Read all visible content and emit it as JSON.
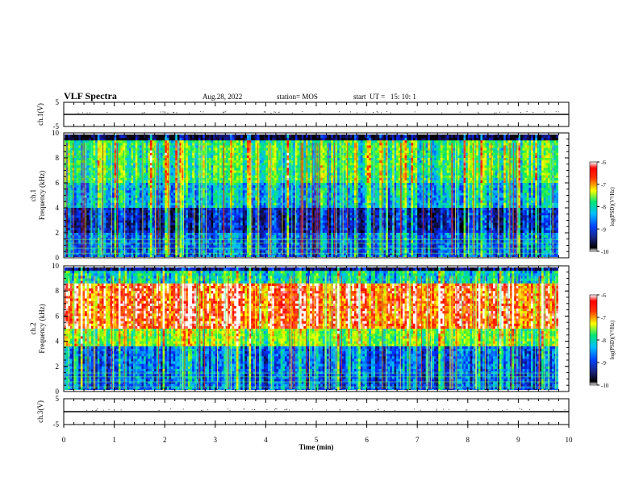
{
  "header": {
    "title": "VLF Spectra",
    "date": "Aug.28, 2022",
    "station": "station= MOS",
    "start_ut": "start  UT =   15: 10: 1"
  },
  "chart_data": [
    {
      "type": "line",
      "panel": "ch.1 waveform",
      "ylabel": "ch.1(V)",
      "ylim": [
        -5,
        5
      ],
      "yticks": [
        5,
        -5
      ],
      "x": [
        0,
        10
      ],
      "series": [
        {
          "values": [
            0,
            0
          ]
        }
      ]
    },
    {
      "type": "heatmap",
      "panel": "ch.1 spectrogram",
      "ylabel": "ch.1\nFrequency (kHz)",
      "ylabel_line1": "ch.1",
      "ylabel_line2": "Frequency (kHz)",
      "ylim": [
        0,
        10
      ],
      "yticks": [
        0,
        2,
        4,
        6,
        8,
        10
      ],
      "colorbar": {
        "label": "log(PSD)(V²/Hz)",
        "range": [
          -10,
          -6
        ],
        "ticks": [
          -6,
          -7,
          -8,
          -9,
          -10
        ]
      }
    },
    {
      "type": "heatmap",
      "panel": "ch.2 spectrogram",
      "ylabel": "ch.2\nFrequency (kHz)",
      "ylabel_line1": "ch.2",
      "ylabel_line2": "Frequency (kHz)",
      "ylim": [
        0,
        10
      ],
      "yticks": [
        0,
        2,
        4,
        6,
        8,
        10
      ],
      "colorbar": {
        "label": "log(PSD)(V²/Hz)",
        "range": [
          -10,
          -6
        ],
        "ticks": [
          -6,
          -7,
          -8,
          -9,
          -10
        ]
      }
    },
    {
      "type": "line",
      "panel": "ch.3 waveform",
      "ylabel": "ch.3(V)",
      "ylim": [
        -5,
        5
      ],
      "yticks": [
        5,
        -5
      ],
      "x": [
        0,
        10
      ],
      "series": [
        {
          "values": [
            0,
            0
          ]
        }
      ]
    }
  ],
  "xaxis": {
    "label": "Time (min)",
    "ticks": [
      "0",
      "1",
      "2",
      "3",
      "4",
      "5",
      "6",
      "7",
      "8",
      "9",
      "10"
    ],
    "range": [
      0,
      10
    ]
  },
  "colors": {
    "colormap": [
      "#000000",
      "#1a237e",
      "#0044ff",
      "#00bfff",
      "#00e676",
      "#ffff00",
      "#ff8c00",
      "#ff0000",
      "#ffffff"
    ]
  }
}
